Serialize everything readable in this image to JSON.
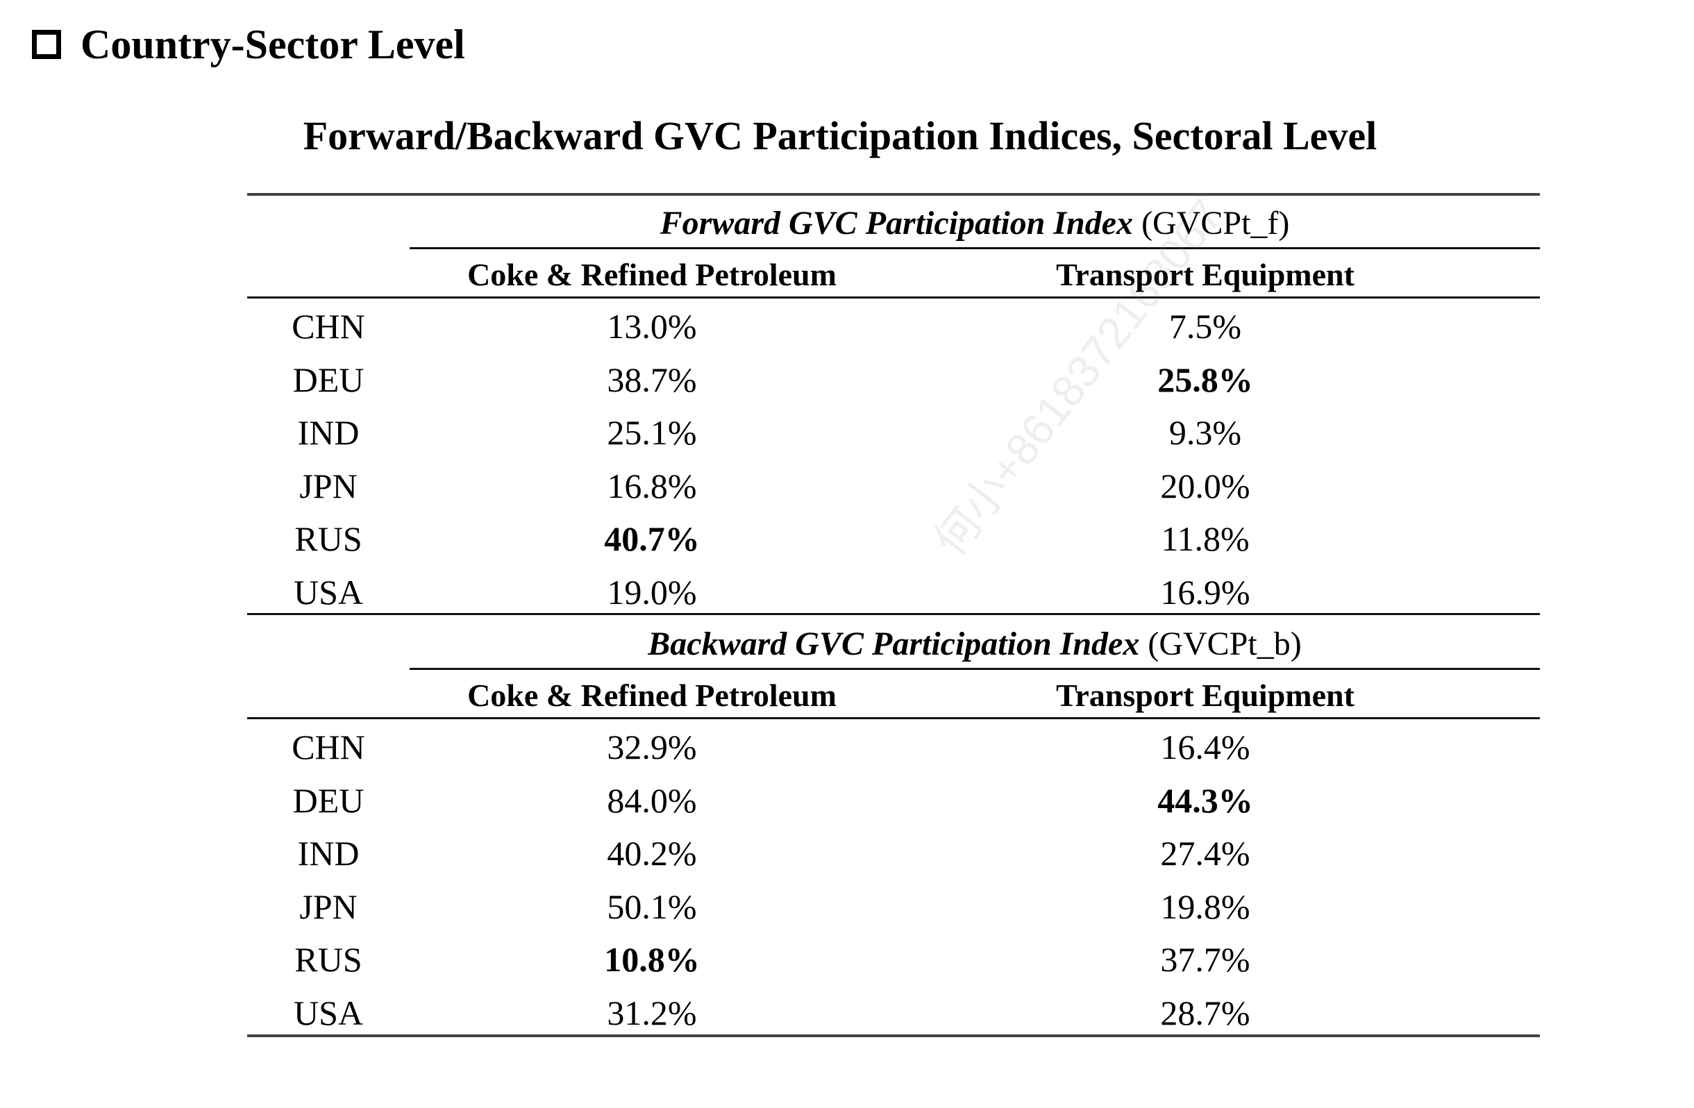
{
  "section": {
    "title": "Country-Sector Level"
  },
  "table": {
    "title": "Forward/Backward GVC Participation Indices, Sectoral Level",
    "columns": [
      "Coke & Refined Petroleum",
      "Transport Equipment"
    ],
    "panels": [
      {
        "title_italic": "Forward GVC Participation Index",
        "title_suffix": " (GVCPt_f)",
        "rows": [
          {
            "country": "CHN",
            "values": [
              "13.0%",
              "7.5%"
            ]
          },
          {
            "country": "DEU",
            "values": [
              "38.7%",
              "25.8%"
            ]
          },
          {
            "country": "IND",
            "values": [
              "25.1%",
              "9.3%"
            ]
          },
          {
            "country": "JPN",
            "values": [
              "16.8%",
              "20.0%"
            ]
          },
          {
            "country": "RUS",
            "values": [
              "40.7%",
              "11.8%"
            ]
          },
          {
            "country": "USA",
            "values": [
              "19.0%",
              "16.9%"
            ]
          }
        ],
        "bold_cells": [
          [
            1,
            1
          ],
          [
            4,
            0
          ]
        ]
      },
      {
        "title_italic": "Backward GVC Participation Index",
        "title_suffix": " (GVCPt_b)",
        "rows": [
          {
            "country": "CHN",
            "values": [
              "32.9%",
              "16.4%"
            ]
          },
          {
            "country": "DEU",
            "values": [
              "84.0%",
              "44.3%"
            ]
          },
          {
            "country": "IND",
            "values": [
              "40.2%",
              "27.4%"
            ]
          },
          {
            "country": "JPN",
            "values": [
              "50.1%",
              "19.8%"
            ]
          },
          {
            "country": "RUS",
            "values": [
              "10.8%",
              "37.7%"
            ]
          },
          {
            "country": "USA",
            "values": [
              "31.2%",
              "28.7%"
            ]
          }
        ],
        "bold_cells": [
          [
            1,
            1
          ],
          [
            4,
            0
          ]
        ]
      }
    ]
  },
  "watermark": {
    "text": "何小+8618372168067"
  }
}
